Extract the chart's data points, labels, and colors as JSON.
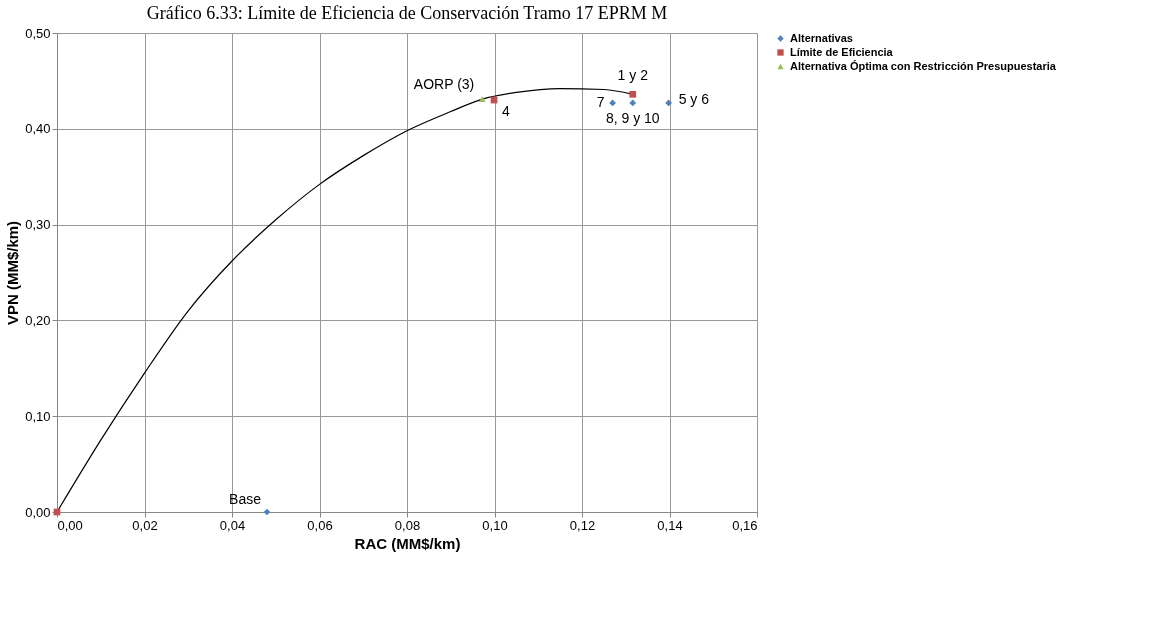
{
  "chart_data": {
    "type": "scatter",
    "title": "Gráfico 6.33: Límite de Eficiencia de Conservación Tramo 17 EPRM M",
    "xlabel": "RAC (MM$/km)",
    "ylabel": "VPN (MM$/km)",
    "xlim": [
      0,
      0.16
    ],
    "xticks": [
      {
        "value": 0,
        "label": "0,00"
      },
      {
        "value": 0.02,
        "label": "0,02"
      },
      {
        "value": 0.04,
        "label": "0,04"
      },
      {
        "value": 0.06,
        "label": "0,06"
      },
      {
        "value": 0.08,
        "label": "0,08"
      },
      {
        "value": 0.1,
        "label": "0,10"
      },
      {
        "value": 0.12,
        "label": "0,12"
      },
      {
        "value": 0.14,
        "label": "0,14"
      },
      {
        "value": 0.16,
        "label": "0,16"
      }
    ],
    "ylim": [
      0,
      0.5
    ],
    "yticks": [
      {
        "value": 0,
        "label": "0,00"
      },
      {
        "value": 0.1,
        "label": "0,10"
      },
      {
        "value": 0.2,
        "label": "0,20"
      },
      {
        "value": 0.3,
        "label": "0,30"
      },
      {
        "value": 0.4,
        "label": "0,40"
      },
      {
        "value": 0.5,
        "label": "0,50"
      }
    ],
    "grid": true,
    "legend": "right",
    "series": [
      {
        "type": "line",
        "color": "#000000",
        "marker": "none",
        "x": [
          0,
          0.01,
          0.02,
          0.03,
          0.04,
          0.05,
          0.06,
          0.07,
          0.08,
          0.09,
          0.0972,
          0.105,
          0.115,
          0.125,
          0.1316
        ],
        "values": [
          0,
          0.075,
          0.145,
          0.21,
          0.262,
          0.305,
          0.342,
          0.372,
          0.398,
          0.418,
          0.431,
          0.438,
          0.442,
          0.441,
          0.436
        ]
      },
      {
        "name": "Alternativas",
        "color": "#4f81bd",
        "marker": "diamond",
        "x": [
          0.048,
          0.127,
          0.1316,
          0.1398
        ],
        "values": [
          0,
          0.427,
          0.427,
          0.427
        ]
      },
      {
        "name": "Límite de Eficiencia",
        "color": "#c0504d",
        "marker": "square",
        "x": [
          0,
          0.0999,
          0.1316
        ],
        "values": [
          0,
          0.43,
          0.436
        ]
      },
      {
        "name": "Alternativa Óptima con Restricción Presupuestaria",
        "color": "#9bbb59",
        "marker": "triangle",
        "x": [
          0.0972
        ],
        "values": [
          0.431
        ]
      }
    ],
    "annotations": [
      {
        "text": "Base",
        "x": 0.048,
        "y": 0
      },
      {
        "text": "AORP (3)",
        "x": 0.0972,
        "y": 0.431
      },
      {
        "text": "4",
        "x": 0.0999,
        "y": 0.43
      },
      {
        "text": "1 y 2",
        "x": 0.1316,
        "y": 0.436
      },
      {
        "text": "7",
        "x": 0.127,
        "y": 0.427
      },
      {
        "text": "8, 9 y 10",
        "x": 0.1316,
        "y": 0.427
      },
      {
        "text": "5 y 6",
        "x": 0.1398,
        "y": 0.427
      }
    ]
  }
}
